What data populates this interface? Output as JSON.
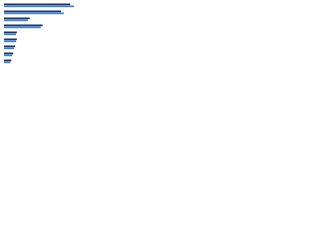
{
  "chart_data": {
    "type": "hbar",
    "categories": [
      null,
      null,
      null,
      null,
      null,
      null,
      null,
      null,
      null
    ],
    "series": [
      {
        "color": "#1d3461",
        "values": [
          72,
          62,
          28,
          42,
          14,
          14,
          12,
          10,
          8
        ]
      },
      {
        "color": "#3d7fd6",
        "values": [
          76,
          65,
          26,
          40,
          13,
          13,
          11,
          9,
          7
        ]
      }
    ],
    "xlim": [
      0,
      100
    ]
  }
}
